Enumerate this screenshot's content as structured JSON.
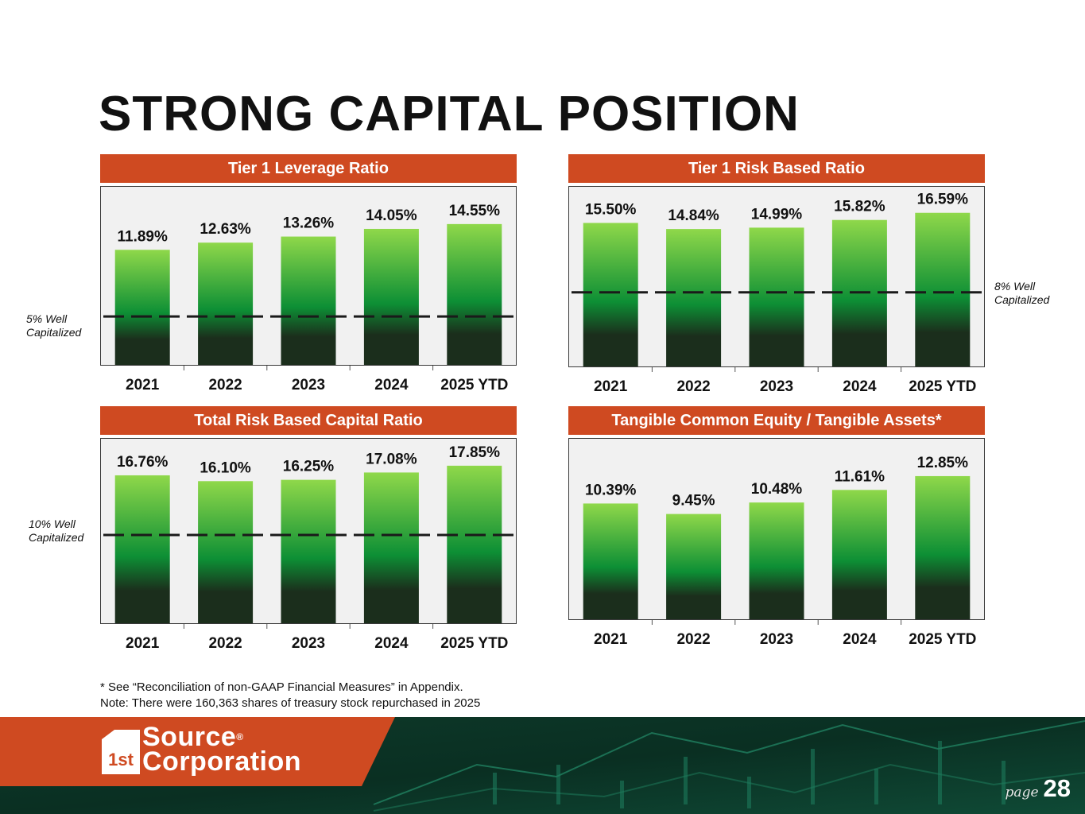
{
  "page_title": "STRONG CAPITAL POSITION",
  "colors": {
    "header_bg": "#cf4a21",
    "bar_top": "#8fd84a",
    "bar_mid": "#0d8f35",
    "bar_bottom": "#1b2e1c",
    "plot_bg": "#f1f1f1"
  },
  "chart_data": [
    {
      "type": "bar",
      "title": "Tier 1 Leverage Ratio",
      "categories": [
        "2021",
        "2022",
        "2023",
        "2024",
        "2025 YTD"
      ],
      "values": [
        11.89,
        12.63,
        13.26,
        14.05,
        14.55
      ],
      "labels": [
        "11.89%",
        "12.63%",
        "13.26%",
        "14.05%",
        "14.55%"
      ],
      "threshold": 5,
      "threshold_label": [
        "5% Well",
        "Capitalized"
      ],
      "threshold_label_side": "left",
      "ylim": [
        0,
        18.4
      ]
    },
    {
      "type": "bar",
      "title": "Tier 1 Risk Based Ratio",
      "categories": [
        "2021",
        "2022",
        "2023",
        "2024",
        "2025 YTD"
      ],
      "values": [
        15.5,
        14.84,
        14.99,
        15.82,
        16.59
      ],
      "labels": [
        "15.50%",
        "14.84%",
        "14.99%",
        "15.82%",
        "16.59%"
      ],
      "threshold": 8,
      "threshold_label": [
        "8% Well",
        "Capitalized"
      ],
      "threshold_label_side": "right",
      "ylim": [
        0,
        19.4
      ]
    },
    {
      "type": "bar",
      "title": "Total Risk Based Capital Ratio",
      "categories": [
        "2021",
        "2022",
        "2023",
        "2024",
        "2025 YTD"
      ],
      "values": [
        16.76,
        16.1,
        16.25,
        17.08,
        17.85
      ],
      "labels": [
        "16.76%",
        "16.10%",
        "16.25%",
        "17.08%",
        "17.85%"
      ],
      "threshold": 10,
      "threshold_label": [
        "10% Well",
        "Capitalized"
      ],
      "threshold_label_side": "left",
      "ylim": [
        0,
        20.9
      ]
    },
    {
      "type": "bar",
      "title": "Tangible Common Equity / Tangible Assets*",
      "categories": [
        "2021",
        "2022",
        "2023",
        "2024",
        "2025 YTD"
      ],
      "values": [
        10.39,
        9.45,
        10.48,
        11.61,
        12.85
      ],
      "labels": [
        "10.39%",
        "9.45%",
        "10.48%",
        "11.61%",
        "12.85%"
      ],
      "threshold": null,
      "threshold_label": [],
      "threshold_label_side": "none",
      "ylim": [
        0,
        16.2
      ]
    }
  ],
  "footnotes": [
    "* See “Reconciliation of non-GAAP Financial Measures” in Appendix.",
    "Note: There were 160,363 shares of treasury stock repurchased in 2025"
  ],
  "logo": {
    "mark": "1st",
    "line1": "Source",
    "line2": "Corporation",
    "registered": "®"
  },
  "page_label": "page",
  "page_number": "28"
}
